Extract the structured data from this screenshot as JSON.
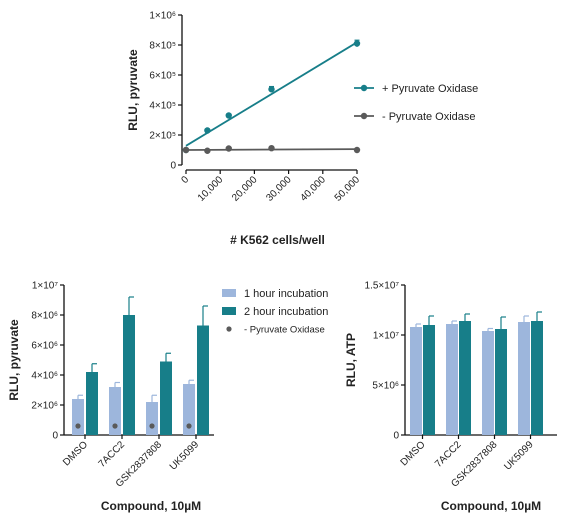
{
  "colors": {
    "teal": "#177E89",
    "dark_gray": "#5A5A5A",
    "light_blue": "#9DB6DC",
    "axis": "#111111"
  },
  "chart_data": [
    {
      "type": "line",
      "xlabel": "# K562 cells/well",
      "ylabel": "RLU, pyruvate",
      "xlim": [
        0,
        50000
      ],
      "ylim": [
        0,
        1000000
      ],
      "x_ticks": [
        {
          "value": 0,
          "label": "0"
        },
        {
          "value": 10000,
          "label": "10,000"
        },
        {
          "value": 20000,
          "label": "20,000"
        },
        {
          "value": 30000,
          "label": "30,000"
        },
        {
          "value": 40000,
          "label": "40,000"
        },
        {
          "value": 50000,
          "label": "50,000"
        }
      ],
      "y_ticks": [
        {
          "value": 0,
          "label": "0"
        },
        {
          "value": 200000,
          "label": "2×10⁵"
        },
        {
          "value": 400000,
          "label": "4×10⁵"
        },
        {
          "value": 600000,
          "label": "6×10⁵"
        },
        {
          "value": 800000,
          "label": "8×10⁵"
        },
        {
          "value": 1000000,
          "label": "1×10⁶"
        }
      ],
      "legend_position": "right",
      "series": [
        {
          "name": "+ Pyruvate Oxidase",
          "color": "#177E89",
          "x": [
            0,
            6250,
            12500,
            25000,
            50000
          ],
          "y": [
            100000,
            230000,
            330000,
            505000,
            810000
          ],
          "err": [
            8000,
            10000,
            10000,
            18000,
            22000
          ],
          "fit": [
            [
              0,
              128000
            ],
            [
              50000,
              818000
            ]
          ]
        },
        {
          "name": "- Pyruvate Oxidase",
          "color": "#5A5A5A",
          "x": [
            0,
            6250,
            12500,
            25000,
            50000
          ],
          "y": [
            100000,
            95000,
            110000,
            112000,
            100000
          ],
          "err": [
            4000,
            4000,
            4000,
            4000,
            4000
          ],
          "fit": [
            [
              0,
              100000
            ],
            [
              50000,
              106000
            ]
          ]
        }
      ]
    },
    {
      "type": "bar",
      "xlabel": "Compound, 10µM",
      "ylabel": "RLU, pyruvate",
      "ylim": [
        0,
        10000000
      ],
      "categories": [
        "DMSO",
        "7ACC2",
        "GSK2837808",
        "UK5099"
      ],
      "y_ticks": [
        {
          "value": 0,
          "label": "0"
        },
        {
          "value": 2000000,
          "label": "2×10⁶"
        },
        {
          "value": 4000000,
          "label": "4×10⁶"
        },
        {
          "value": 6000000,
          "label": "6×10⁶"
        },
        {
          "value": 8000000,
          "label": "8×10⁶"
        },
        {
          "value": 10000000,
          "label": "1×10⁷"
        }
      ],
      "legend_position": "top-right",
      "series": [
        {
          "name": "1 hour incubation",
          "color": "#9DB6DC",
          "values": [
            2400000,
            3200000,
            2200000,
            3400000
          ],
          "err": [
            250000,
            300000,
            450000,
            250000
          ]
        },
        {
          "name": "2 hour incubation",
          "color": "#177E89",
          "values": [
            4200000,
            8000000,
            4900000,
            7300000
          ],
          "err": [
            550000,
            1200000,
            550000,
            1300000
          ]
        }
      ],
      "dots": {
        "name": "- Pyruvate Oxidase",
        "color": "#5A5A5A",
        "values": [
          600000,
          600000,
          600000,
          600000
        ]
      }
    },
    {
      "type": "bar",
      "xlabel": "Compound, 10µM",
      "ylabel": "RLU, ATP",
      "ylim": [
        0,
        15000000
      ],
      "categories": [
        "DMSO",
        "7ACC2",
        "GSK2837808",
        "UK5099"
      ],
      "y_ticks": [
        {
          "value": 0,
          "label": "0"
        },
        {
          "value": 5000000,
          "label": "5×10⁶"
        },
        {
          "value": 10000000,
          "label": "1×10⁷"
        },
        {
          "value": 15000000,
          "label": "1.5×10⁷"
        }
      ],
      "series": [
        {
          "values": [
            10800000,
            11100000,
            10400000,
            11300000
          ],
          "err": [
            300000,
            300000,
            250000,
            600000
          ],
          "color": "#9DB6DC"
        },
        {
          "values": [
            11000000,
            11400000,
            10600000,
            11400000
          ],
          "err": [
            900000,
            700000,
            1200000,
            900000
          ],
          "color": "#177E89"
        }
      ]
    }
  ]
}
